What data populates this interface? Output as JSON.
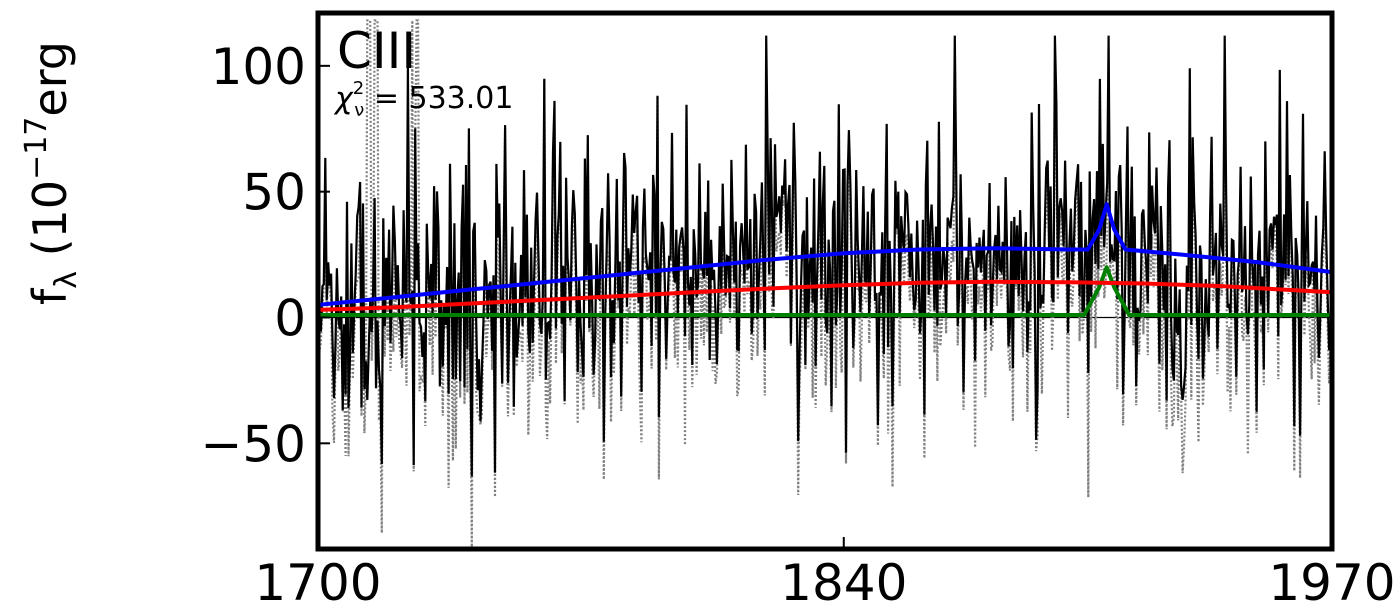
{
  "chart_data": {
    "type": "line",
    "title": "",
    "ylabel_base": "f",
    "ylabel_subscript": "λ",
    "ylabel_rest_open": " (10",
    "ylabel_exponent": "−17",
    "ylabel_rest": "erg",
    "xlim": [
      1700,
      1970
    ],
    "ylim": [
      -92,
      121
    ],
    "x_ticks": [
      1700,
      1840,
      1970
    ],
    "x_tick_labels": [
      "1700",
      "1840",
      "1970"
    ],
    "y_ticks": [
      100,
      50,
      0,
      -50
    ],
    "y_tick_labels": [
      "100",
      "50",
      "0",
      "−50"
    ],
    "grid": false,
    "zero_line": 0,
    "annotation_line": "CIII",
    "annotation_chi_symbol": "χ",
    "annotation_chi_sub": "ν",
    "annotation_chi_sup": "2",
    "annotation_chi_value": " = 533.01",
    "colors": {
      "data": "#000000",
      "error": "#808080",
      "total_model": "#0000ff",
      "continuum": "#ff0000",
      "line_component": "#008000"
    },
    "series": [
      {
        "role": "total_model",
        "color": "#0000ff",
        "x": [
          1700,
          1720,
          1740,
          1760,
          1780,
          1800,
          1820,
          1840,
          1860,
          1880,
          1900,
          1905,
          1908,
          1910,
          1912,
          1915,
          1930,
          1950,
          1970
        ],
        "y": [
          5,
          8,
          11,
          14,
          17,
          20,
          23,
          25.5,
          27,
          27.5,
          27,
          27,
          35,
          45,
          35,
          27,
          25,
          22,
          18
        ]
      },
      {
        "role": "continuum",
        "color": "#ff0000",
        "x": [
          1700,
          1720,
          1740,
          1760,
          1780,
          1800,
          1820,
          1840,
          1860,
          1880,
          1900,
          1920,
          1940,
          1970
        ],
        "y": [
          3,
          4,
          5.5,
          7,
          8.5,
          10,
          11.5,
          12.8,
          13.8,
          14.2,
          14,
          13.5,
          12.5,
          10
        ]
      },
      {
        "role": "line_component",
        "color": "#008000",
        "x": [
          1700,
          1904,
          1908,
          1910,
          1912,
          1916,
          1970
        ],
        "y": [
          1,
          1,
          12,
          20,
          12,
          1,
          1
        ]
      }
    ],
    "noisy_series": [
      {
        "role": "data",
        "color": "#000000",
        "x_range": [
          1700,
          1970
        ],
        "y_mean_follows": "total_model",
        "scatter": "~±40, spikes up to 110 and down to −68"
      },
      {
        "role": "error",
        "color": "#808080",
        "style": "dotted",
        "x_range": [
          1700,
          1970
        ],
        "scatter": "~±40, spikes down to −92"
      }
    ]
  }
}
